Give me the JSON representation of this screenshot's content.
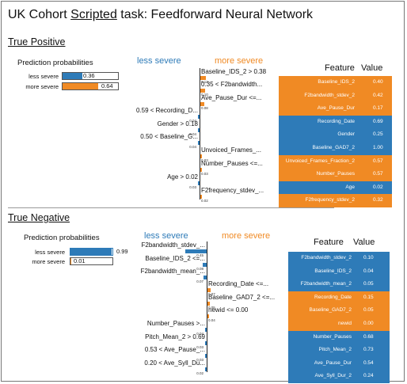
{
  "title": {
    "prefix": "UK Cohort ",
    "underlined": "Scripted",
    "suffix": " task: Feedforward Neural Network"
  },
  "colors": {
    "less_severe": "#2e7bb8",
    "more_severe": "#f08a24"
  },
  "true_positive": {
    "heading": "True Positive",
    "prediction": {
      "title": "Prediction probabilities",
      "rows": [
        {
          "label": "less severe",
          "value": "0.36",
          "fraction": 0.36
        },
        {
          "label": "more severe",
          "value": "0.64",
          "fraction": 0.64
        }
      ]
    },
    "less_label": "less severe",
    "more_label": "more severe",
    "features_left": [
      {
        "text": "0.59 < Recording_D...",
        "weight": "0.04"
      },
      {
        "text": "Gender > 0.18",
        "weight": "0.04"
      },
      {
        "text": "0.50 < Baseline_G...",
        "weight": "0.04"
      },
      {
        "text": "Age > 0.02",
        "weight": "0.03"
      }
    ],
    "features_right": [
      {
        "text": "Baseline_IDS_2 > 0.38",
        "weight": "0.12"
      },
      {
        "text": "0.35 < F2bandwidth...",
        "weight": "0.10"
      },
      {
        "text": "Ave_Pause_Dur <=...",
        "weight": "0.08"
      },
      {
        "text": "Unvoiced_Frames_...",
        "weight": "0.03"
      },
      {
        "text": "Number_Pauses <=...",
        "weight": "0.03"
      },
      {
        "text": "F2frequency_stdev_...",
        "weight": "0.02"
      }
    ],
    "table": {
      "header_feature": "Feature",
      "header_value": "Value",
      "rows": [
        {
          "feature": "Baseline_IDS_2",
          "value": "0.40",
          "side": "more"
        },
        {
          "feature": "F2bandwidth_stdev_2",
          "value": "0.42",
          "side": "more"
        },
        {
          "feature": "Ave_Pause_Dur",
          "value": "0.17",
          "side": "more"
        },
        {
          "feature": "Recording_Date",
          "value": "0.69",
          "side": "less"
        },
        {
          "feature": "Gender",
          "value": "0.25",
          "side": "less"
        },
        {
          "feature": "Baseline_GAD7_2",
          "value": "1.00",
          "side": "less"
        },
        {
          "feature": "Unvoiced_Frames_Fraction_2",
          "value": "0.57",
          "side": "more"
        },
        {
          "feature": "Number_Pauses",
          "value": "0.57",
          "side": "more"
        },
        {
          "feature": "Age",
          "value": "0.02",
          "side": "less"
        },
        {
          "feature": "F2frequency_stdev_2",
          "value": "0.32",
          "side": "more"
        }
      ]
    }
  },
  "true_negative": {
    "heading": "True Negative",
    "prediction": {
      "title": "Prediction probabilities",
      "rows": [
        {
          "label": "less severe",
          "value": "0.99",
          "fraction": 0.99
        },
        {
          "label": "more severe",
          "value": "0.01",
          "fraction": 0.01
        }
      ]
    },
    "less_label": "less severe",
    "more_label": "more severe",
    "features_left": [
      {
        "text": "F2bandwidth_stdev_...",
        "weight": "0.45"
      },
      {
        "text": "Baseline_IDS_2 <=...",
        "weight": "0.08"
      },
      {
        "text": "F2bandwidth_mean_...",
        "weight": "0.07"
      },
      {
        "text": "Number_Pauses >...",
        "weight": "0.04"
      },
      {
        "text": "Pitch_Mean_2 > 0.69",
        "weight": "0.03"
      },
      {
        "text": "0.53 < Ave_Pause_...",
        "weight": "0.03"
      },
      {
        "text": "0.20 < Ave_Syll_Du...",
        "weight": "0.02"
      }
    ],
    "features_right": [
      {
        "text": "Recording_Date <=...",
        "weight": "0.07"
      },
      {
        "text": "Baseline_GAD7_2 <=...",
        "weight": "0.05"
      },
      {
        "text": "newid <= 0.00",
        "weight": "0.04"
      }
    ],
    "table": {
      "header_feature": "Feature",
      "header_value": "Value",
      "rows": [
        {
          "feature": "F2bandwidth_stdev_2",
          "value": "0.10",
          "side": "less"
        },
        {
          "feature": "Baseline_IDS_2",
          "value": "0.04",
          "side": "less"
        },
        {
          "feature": "F2bandwidth_mean_2",
          "value": "0.05",
          "side": "less"
        },
        {
          "feature": "Recording_Date",
          "value": "0.15",
          "side": "more"
        },
        {
          "feature": "Baseline_GAD7_2",
          "value": "0.05",
          "side": "more"
        },
        {
          "feature": "newid",
          "value": "0.00",
          "side": "more"
        },
        {
          "feature": "Number_Pauses",
          "value": "0.68",
          "side": "less"
        },
        {
          "feature": "Pitch_Mean_2",
          "value": "0.73",
          "side": "less"
        },
        {
          "feature": "Ave_Pause_Dur",
          "value": "0.54",
          "side": "less"
        },
        {
          "feature": "Ave_Syll_Dur_2",
          "value": "0.24",
          "side": "less"
        }
      ]
    }
  }
}
